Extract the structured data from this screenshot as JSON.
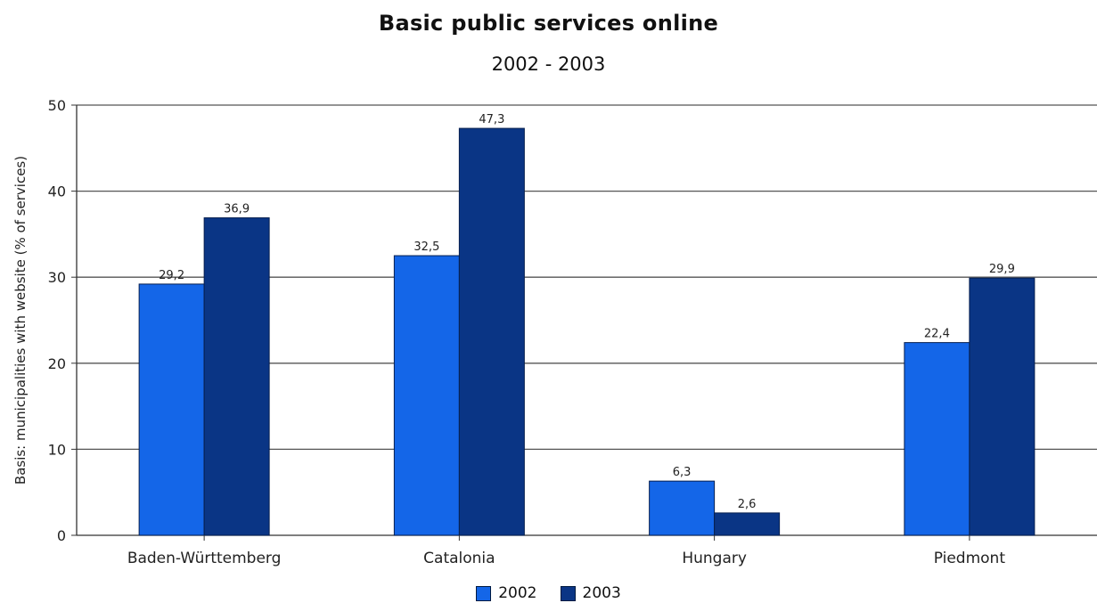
{
  "chart_data": {
    "type": "bar",
    "title": "Basic public services online",
    "subtitle": "2002 - 2003",
    "ylabel": "Basis: municipalities with website (% of services)",
    "xlabel": "",
    "ylim": [
      0,
      50
    ],
    "yticks": [
      0,
      10,
      20,
      30,
      40,
      50
    ],
    "grid": true,
    "legend_position": "bottom",
    "categories": [
      "Baden-Württemberg",
      "Catalonia",
      "Hungary",
      "Piedmont"
    ],
    "series": [
      {
        "name": "2002",
        "color": "#1466e8",
        "values": [
          29.2,
          32.5,
          6.3,
          22.4
        ],
        "labels": [
          "29,2",
          "32,5",
          "6,3",
          "22,4"
        ]
      },
      {
        "name": "2003",
        "color": "#0a3585",
        "values": [
          36.9,
          47.3,
          2.6,
          29.9
        ],
        "labels": [
          "36,9",
          "47,3",
          "2,6",
          "29,9"
        ]
      }
    ]
  }
}
